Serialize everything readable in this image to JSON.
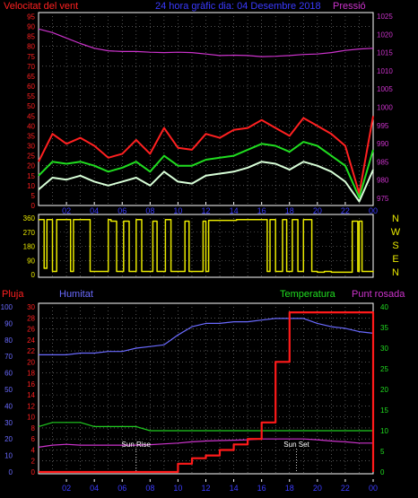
{
  "chart_data": [
    {
      "type": "line",
      "panel": "wind-pressure",
      "title": "24 hora gràfic dia: 04 Desembre 2018",
      "left_axis_label": "Velocitat del vent",
      "right_axis_label": "Pressió",
      "x_ticks": [
        "02",
        "04",
        "06",
        "08",
        "10",
        "12",
        "14",
        "16",
        "18",
        "20",
        "22",
        "00"
      ],
      "left_ticks": [
        0,
        5,
        10,
        15,
        20,
        25,
        30,
        35,
        40,
        45,
        50,
        55,
        60,
        65,
        70,
        75,
        80,
        85,
        90,
        95
      ],
      "left_ylim": [
        0,
        97
      ],
      "right_ticks": [
        975,
        980,
        985,
        990,
        995,
        1000,
        1005,
        1010,
        1015,
        1020,
        1025
      ],
      "right_ylim": [
        973,
        1026
      ],
      "x_hours": [
        0,
        1,
        2,
        3,
        4,
        5,
        6,
        7,
        8,
        9,
        10,
        11,
        12,
        13,
        14,
        15,
        16,
        17,
        18,
        19,
        20,
        21,
        22,
        23,
        24
      ],
      "series": [
        {
          "name": "Velocitat del vent",
          "color": "#ff2020",
          "axis": "left",
          "values": [
            22,
            36,
            31,
            34,
            30,
            24,
            26,
            33,
            26,
            39,
            29,
            28,
            36,
            34,
            38,
            39,
            43,
            39,
            35,
            44,
            40,
            36,
            30,
            6,
            45
          ]
        },
        {
          "name": "Temperatura",
          "color": "#20dd20",
          "axis": "left",
          "values": [
            15,
            22,
            21,
            22,
            20,
            17,
            19,
            22,
            17,
            25,
            20,
            20,
            23,
            24,
            25,
            28,
            31,
            30,
            27,
            32,
            30,
            25,
            20,
            4,
            28
          ]
        },
        {
          "name": "Humitat",
          "color": "#d8ffd8",
          "axis": "left",
          "values": [
            8,
            14,
            13,
            15,
            12,
            10,
            12,
            14,
            10,
            17,
            12,
            11,
            15,
            16,
            17,
            19,
            22,
            21,
            18,
            22,
            20,
            17,
            12,
            2,
            18
          ]
        },
        {
          "name": "Pressió",
          "color": "#cc33cc",
          "axis": "right",
          "values": [
            1021.5,
            1020.5,
            1019,
            1017.5,
            1016.2,
            1015.5,
            1015.3,
            1015.3,
            1015.1,
            1015,
            1015.1,
            1015,
            1014.6,
            1014.2,
            1014.3,
            1014.2,
            1013.9,
            1014,
            1014.2,
            1014.5,
            1014.6,
            1015,
            1015.6,
            1016,
            1016.2
          ]
        }
      ]
    },
    {
      "type": "line",
      "panel": "wind-direction",
      "left_ticks": [
        0,
        90,
        180,
        270,
        360
      ],
      "ylim": [
        0,
        360
      ],
      "right_labels": [
        "N",
        "W",
        "S",
        "E",
        "N"
      ],
      "x_ticks": [
        "02",
        "04",
        "06",
        "08",
        "10",
        "12",
        "14",
        "16",
        "18",
        "20",
        "22",
        "00"
      ],
      "color": "#e8e800",
      "x_hours": [
        0,
        0.4,
        0.6,
        1.0,
        1.3,
        2.3,
        2.5,
        3.7,
        5.0,
        5.2,
        5.6,
        6.1,
        6.5,
        7.0,
        7.4,
        8.2,
        8.5,
        9.1,
        9.5,
        10.5,
        10.8,
        11.8,
        12.0,
        12.2,
        14.0,
        14.2,
        16.1,
        16.4,
        16.6,
        17.0,
        17.5,
        17.8,
        18.2,
        18.6,
        19.0,
        19.6,
        20.0,
        20.5,
        21.0,
        22.3,
        22.5,
        22.9,
        23.0,
        23.2,
        24
      ],
      "values": [
        350,
        40,
        350,
        20,
        350,
        20,
        350,
        20,
        350,
        340,
        20,
        340,
        20,
        350,
        20,
        340,
        20,
        350,
        20,
        340,
        20,
        340,
        20,
        345,
        345,
        350,
        350,
        20,
        350,
        20,
        350,
        20,
        350,
        20,
        350,
        20,
        15,
        20,
        15,
        15,
        340,
        20,
        340,
        20,
        15
      ]
    },
    {
      "type": "line",
      "panel": "rain-humidity-temp",
      "labels": {
        "rain": "Pluja",
        "humidity": "Humitat",
        "temperature": "Temperatura",
        "dewpoint": "Punt rosada"
      },
      "annotations": [
        "Sun Rise",
        "Sun Set"
      ],
      "annotation_hours": [
        7.0,
        18.5
      ],
      "x_ticks": [
        "02",
        "04",
        "06",
        "08",
        "10",
        "12",
        "14",
        "16",
        "18",
        "20",
        "22",
        "00"
      ],
      "humidity_ticks": [
        0,
        10,
        20,
        30,
        40,
        50,
        60,
        70,
        80,
        90,
        100
      ],
      "humidity_ylim": [
        0,
        100
      ],
      "rain_ticks": [
        0,
        2,
        4,
        6,
        8,
        10,
        12,
        14,
        16,
        18,
        20,
        22,
        24,
        26,
        28,
        30
      ],
      "rain_ylim": [
        0,
        30
      ],
      "temp_ticks": [
        0,
        5,
        10,
        15,
        20,
        25,
        30,
        35,
        40
      ],
      "temp_ylim": [
        0,
        40
      ],
      "x_hours": [
        0,
        1,
        2,
        3,
        4,
        5,
        6,
        7,
        8,
        9,
        10,
        11,
        12,
        13,
        14,
        15,
        16,
        17,
        18,
        19,
        20,
        21,
        22,
        23,
        24
      ],
      "series": [
        {
          "name": "Humitat",
          "color": "#6a6aff",
          "axis": "humidity",
          "values": [
            71,
            71,
            71,
            72,
            72,
            73,
            73,
            75,
            76,
            77,
            83,
            88,
            90,
            90,
            91,
            91,
            92,
            93,
            93,
            93,
            90,
            88,
            87,
            85,
            84
          ]
        },
        {
          "name": "Temperatura",
          "color": "#20cc20",
          "axis": "temp",
          "values": [
            11,
            12,
            12,
            12,
            11,
            11,
            11,
            11,
            10,
            10,
            10,
            10,
            10,
            10,
            10,
            10,
            10,
            10,
            10,
            10,
            10,
            10,
            10,
            10,
            10
          ]
        },
        {
          "name": "Punt rosada",
          "color": "#cc33cc",
          "axis": "temp",
          "values": [
            6,
            6.5,
            6.7,
            6.5,
            6.5,
            6.5,
            6.5,
            6.5,
            6.6,
            6.8,
            7,
            7.3,
            7.5,
            7.6,
            7.7,
            7.8,
            8,
            8,
            8,
            8,
            7.8,
            7.5,
            7.3,
            7,
            7
          ]
        },
        {
          "name": "Pluja",
          "color": "#ff1a1a",
          "axis": "rain",
          "values": [
            0,
            0,
            0,
            0,
            0,
            0,
            0,
            0,
            0,
            0,
            1.5,
            2.5,
            3,
            4,
            5,
            6,
            9,
            20,
            29,
            29,
            29,
            29,
            29,
            29,
            0
          ]
        }
      ]
    }
  ]
}
